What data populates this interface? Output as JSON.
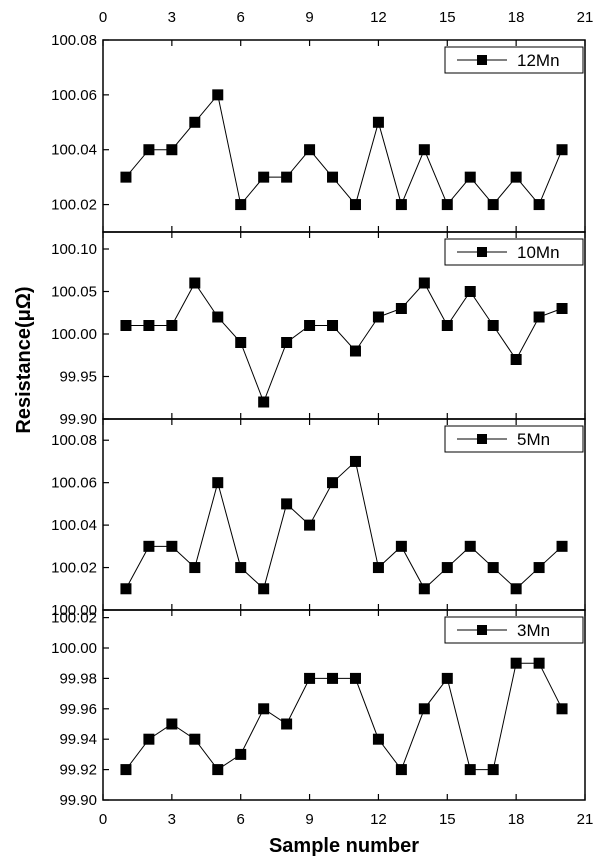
{
  "chart_data": {
    "type": "line",
    "xlabel": "Sample number",
    "ylabel": "Resistance(μΩ)",
    "xlim": [
      0,
      21
    ],
    "xticks": [
      "0",
      "3",
      "6",
      "9",
      "12",
      "15",
      "18",
      "21"
    ],
    "x": [
      1,
      2,
      3,
      4,
      5,
      6,
      7,
      8,
      9,
      10,
      11,
      12,
      13,
      14,
      15,
      16,
      17,
      18,
      19,
      20
    ],
    "panels": [
      {
        "series": {
          "name": "12Mn",
          "values": [
            100.03,
            100.04,
            100.04,
            100.05,
            100.06,
            100.02,
            100.03,
            100.03,
            100.04,
            100.03,
            100.02,
            100.05,
            100.02,
            100.04,
            100.02,
            100.03,
            100.02,
            100.03,
            100.02,
            100.04
          ]
        },
        "ylim": [
          100.01,
          100.08
        ],
        "yticks": [
          "100.08",
          "100.06",
          "100.04",
          "100.02"
        ],
        "ytick_values": [
          100.08,
          100.06,
          100.04,
          100.02
        ]
      },
      {
        "series": {
          "name": "10Mn",
          "values": [
            100.01,
            100.01,
            100.01,
            100.06,
            100.02,
            99.99,
            99.92,
            99.99,
            100.01,
            100.01,
            99.98,
            100.02,
            100.03,
            100.06,
            100.01,
            100.05,
            100.01,
            99.97,
            100.02,
            100.03
          ]
        },
        "ylim": [
          99.9,
          100.12
        ],
        "yticks": [
          "100.10",
          "100.05",
          "100.00",
          "99.95",
          "99.90"
        ],
        "ytick_values": [
          100.1,
          100.05,
          100.0,
          99.95,
          99.9
        ]
      },
      {
        "series": {
          "name": "5Mn",
          "values": [
            100.01,
            100.03,
            100.03,
            100.02,
            100.06,
            100.02,
            100.01,
            100.05,
            100.04,
            100.06,
            100.07,
            100.02,
            100.03,
            100.01,
            100.02,
            100.03,
            100.02,
            100.01,
            100.02,
            100.03
          ]
        },
        "ylim": [
          100.0,
          100.09
        ],
        "yticks": [
          "100.08",
          "100.06",
          "100.04",
          "100.02",
          "100.00"
        ],
        "ytick_values": [
          100.08,
          100.06,
          100.04,
          100.02,
          100.0
        ]
      },
      {
        "series": {
          "name": "3Mn",
          "values": [
            99.92,
            99.94,
            99.95,
            99.94,
            99.92,
            99.93,
            99.96,
            99.95,
            99.98,
            99.98,
            99.98,
            99.94,
            99.92,
            99.96,
            99.98,
            99.92,
            99.92,
            99.99,
            99.99,
            99.96
          ]
        },
        "ylim": [
          99.9,
          100.025
        ],
        "yticks": [
          "100.02",
          "100.00",
          "99.98",
          "99.96",
          "99.94",
          "99.92",
          "99.90"
        ],
        "ytick_values": [
          100.02,
          100.0,
          99.98,
          99.96,
          99.94,
          99.92,
          99.9
        ]
      }
    ],
    "legend_position": "top-right",
    "grid": false
  }
}
